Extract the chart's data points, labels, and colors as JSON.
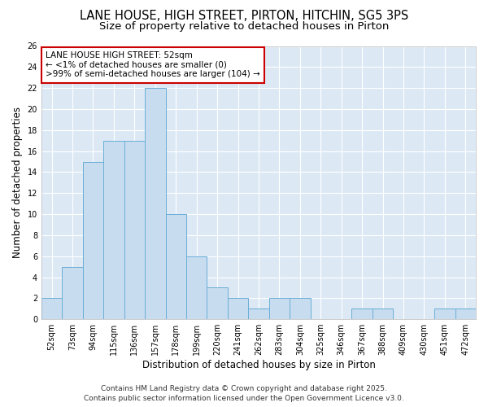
{
  "title_line1": "LANE HOUSE, HIGH STREET, PIRTON, HITCHIN, SG5 3PS",
  "title_line2": "Size of property relative to detached houses in Pirton",
  "xlabel": "Distribution of detached houses by size in Pirton",
  "ylabel": "Number of detached properties",
  "categories": [
    "52sqm",
    "73sqm",
    "94sqm",
    "115sqm",
    "136sqm",
    "157sqm",
    "178sqm",
    "199sqm",
    "220sqm",
    "241sqm",
    "262sqm",
    "283sqm",
    "304sqm",
    "325sqm",
    "346sqm",
    "367sqm",
    "388sqm",
    "409sqm",
    "430sqm",
    "451sqm",
    "472sqm"
  ],
  "values": [
    2,
    5,
    15,
    17,
    17,
    22,
    10,
    6,
    3,
    2,
    1,
    2,
    2,
    0,
    0,
    1,
    1,
    0,
    0,
    1,
    1
  ],
  "bar_color": "#c8dcf0",
  "bar_edge_color": "#6aaed6",
  "annotation_box_text": "LANE HOUSE HIGH STREET: 52sqm\n← <1% of detached houses are smaller (0)\n>99% of semi-detached houses are larger (104) →",
  "annotation_box_color": "#ffffff",
  "annotation_box_edge_color": "#cc0000",
  "fig_background_color": "#ffffff",
  "plot_background_color": "#dce9f5",
  "grid_color": "#ffffff",
  "ylim": [
    0,
    26
  ],
  "yticks": [
    0,
    2,
    4,
    6,
    8,
    10,
    12,
    14,
    16,
    18,
    20,
    22,
    24,
    26
  ],
  "footer_line1": "Contains HM Land Registry data © Crown copyright and database right 2025.",
  "footer_line2": "Contains public sector information licensed under the Open Government Licence v3.0.",
  "title_fontsize": 10.5,
  "subtitle_fontsize": 9.5,
  "axis_label_fontsize": 8.5,
  "tick_fontsize": 7,
  "annotation_fontsize": 7.5,
  "footer_fontsize": 6.5
}
